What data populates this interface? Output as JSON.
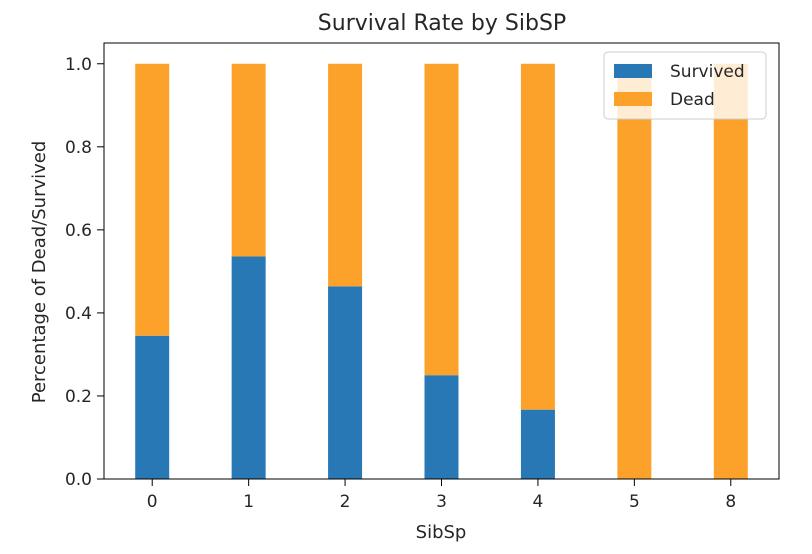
{
  "chart_data": {
    "type": "bar",
    "stacked": true,
    "title": "Survival Rate by SibSP",
    "xlabel": "SibSp",
    "ylabel": "Percentage of Dead/Survived",
    "categories": [
      "0",
      "1",
      "2",
      "3",
      "4",
      "5",
      "8"
    ],
    "series": [
      {
        "name": "Survived",
        "color": "#2878b5",
        "values": [
          0.345,
          0.536,
          0.464,
          0.25,
          0.167,
          0.0,
          0.0
        ]
      },
      {
        "name": "Dead",
        "color": "#fca22b",
        "values": [
          0.655,
          0.464,
          0.536,
          0.75,
          0.833,
          1.0,
          1.0
        ]
      }
    ],
    "ylim": [
      0,
      1.05
    ],
    "yticks": [
      0.0,
      0.2,
      0.4,
      0.6,
      0.8,
      1.0
    ],
    "ytick_labels": [
      "0.0",
      "0.2",
      "0.4",
      "0.6",
      "0.8",
      "1.0"
    ],
    "grid": false,
    "legend_position": "top-right"
  }
}
